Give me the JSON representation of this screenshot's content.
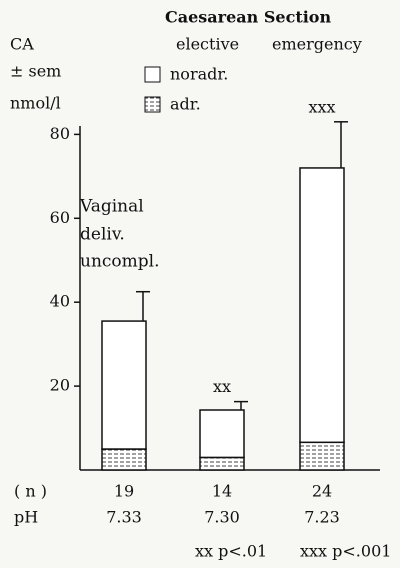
{
  "chart_data": {
    "type": "bar",
    "stacked": true,
    "y_label_lines": [
      "CA",
      "± sem",
      "nmol/l"
    ],
    "header": {
      "title": "Caesarean Section",
      "groups": [
        "elective",
        "emergency"
      ]
    },
    "annotation_lines": [
      "Vaginal",
      "deliv.",
      "uncompl."
    ],
    "series": [
      {
        "name": "adr.",
        "color": "#444444",
        "values": [
          5,
          3,
          6.6
        ]
      },
      {
        "name": "noradr.",
        "color": "#ffffff",
        "values": [
          30.5,
          11.3,
          65.4
        ],
        "errors": [
          7,
          2,
          11
        ]
      }
    ],
    "significance": [
      null,
      "xx",
      "xxx"
    ],
    "ylim": [
      0,
      82
    ],
    "yticks": [
      20,
      40,
      60,
      80
    ],
    "rows": [
      {
        "label": "( n )",
        "values": [
          19,
          14,
          24
        ]
      },
      {
        "label": "pH",
        "values": [
          "7.33",
          "7.30",
          "7.23"
        ]
      }
    ],
    "footnotes": [
      "xx p<.01",
      "xxx p<.001"
    ]
  }
}
